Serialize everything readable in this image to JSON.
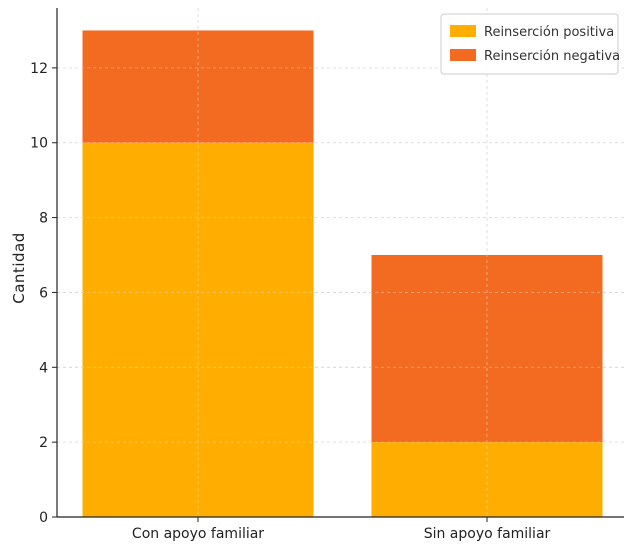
{
  "chart_data": {
    "type": "bar",
    "stacked": true,
    "title": "",
    "xlabel": "",
    "ylabel": "Cantidad",
    "categories": [
      "Con apoyo familiar",
      "Sin apoyo familiar"
    ],
    "series": [
      {
        "name": "Reinserción positiva",
        "values": [
          10,
          2
        ],
        "color": "#FFAE00"
      },
      {
        "name": "Reinserción negativa",
        "values": [
          3,
          5
        ],
        "color": "#F26B21"
      }
    ],
    "ylim": [
      0,
      13.6
    ],
    "yticks": [
      0,
      2,
      4,
      6,
      8,
      10,
      12
    ],
    "grid": true,
    "legend_position": "top-right"
  }
}
